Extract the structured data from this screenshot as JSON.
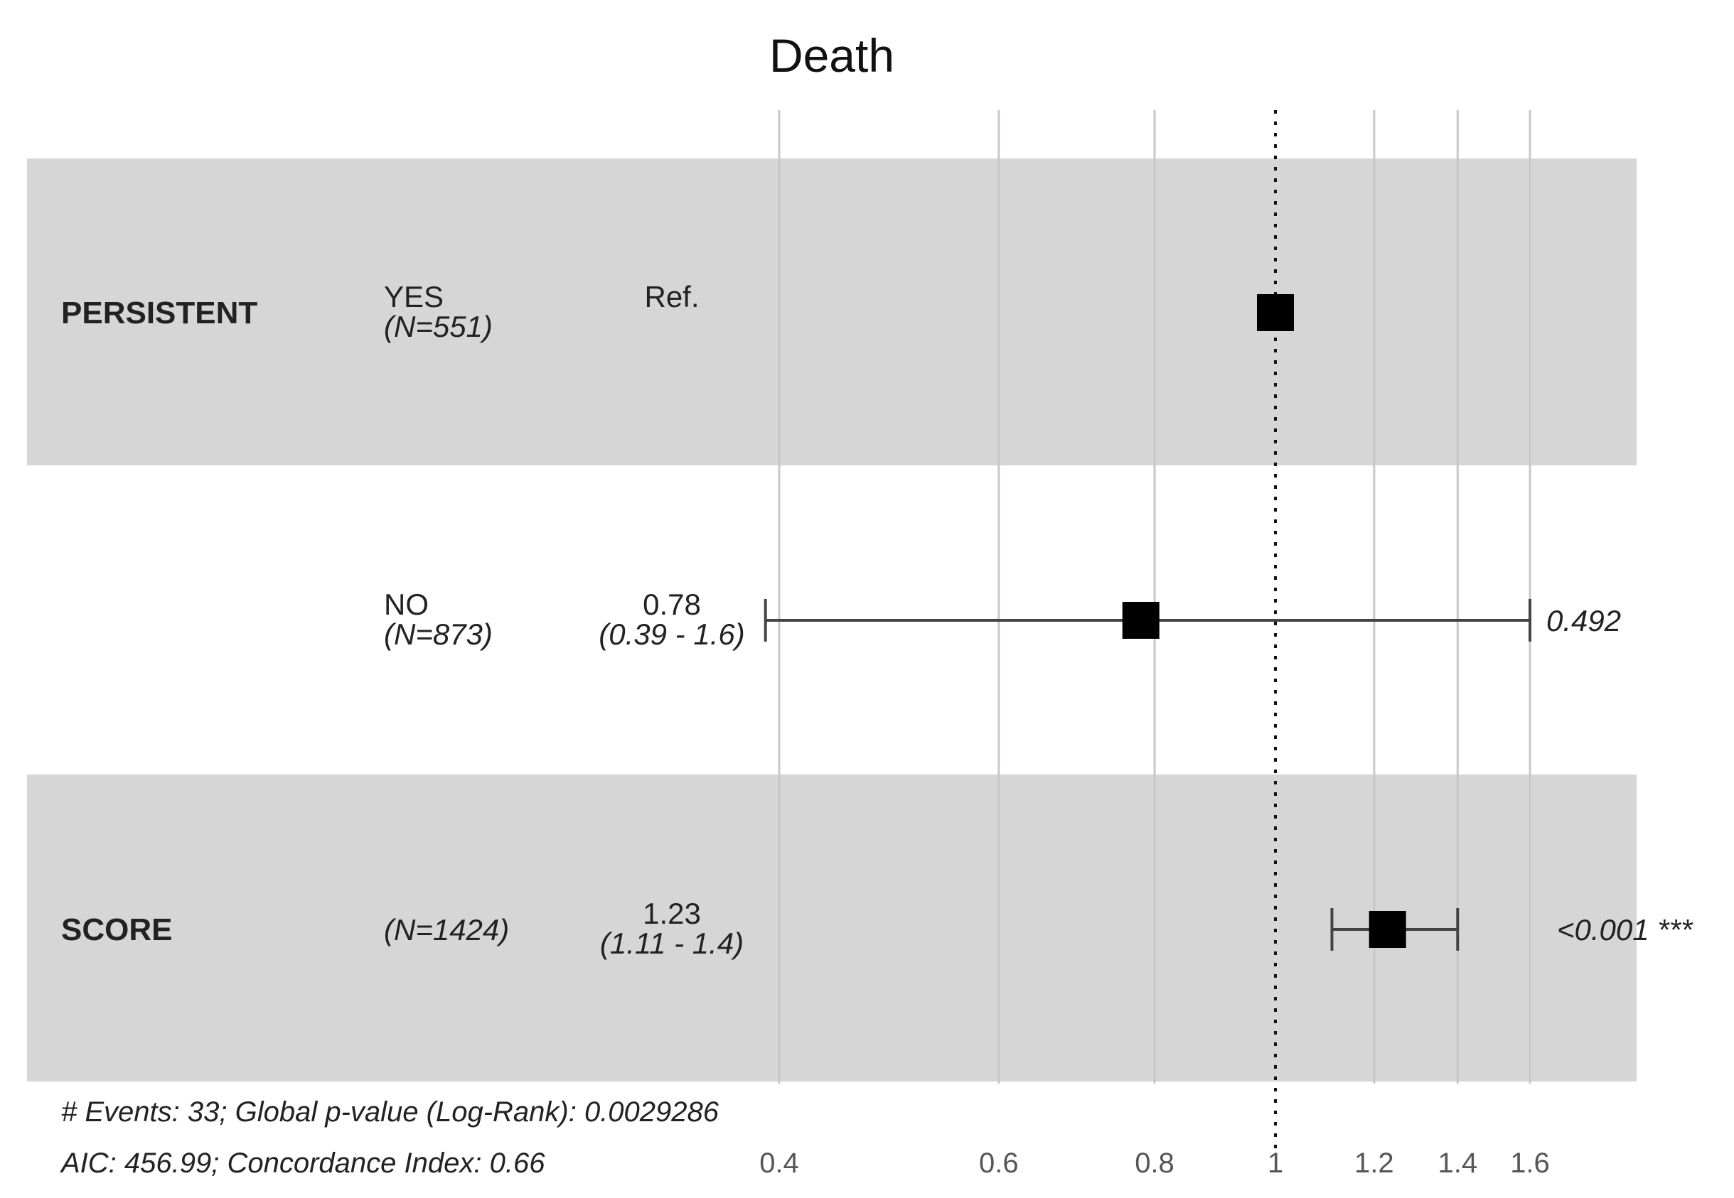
{
  "chart_data": {
    "type": "forest",
    "title": "Death",
    "x_scale": "log",
    "xlim": [
      0.38,
      1.8
    ],
    "ticks": [
      0.4,
      0.6,
      0.8,
      1,
      1.2,
      1.4,
      1.6
    ],
    "tick_labels": [
      "0.4",
      "0.6",
      "0.8",
      "1",
      "1.2",
      "1.4",
      "1.6"
    ],
    "reference_line": 1,
    "rows": [
      {
        "variable": "PERSISTENT",
        "level": "YES",
        "n": "(N=551)",
        "hr_label": "Ref.",
        "ci_label": "",
        "p_label": "",
        "estimate": 1,
        "ci_low": null,
        "ci_high": null,
        "shaded": true
      },
      {
        "variable": "",
        "level": "NO",
        "n": "(N=873)",
        "hr_label": "0.78",
        "ci_label": "(0.39 - 1.6)",
        "p_label": "0.492",
        "estimate": 0.78,
        "ci_low": 0.39,
        "ci_high": 1.6,
        "shaded": false
      },
      {
        "variable": "SCORE",
        "level": "",
        "n": "(N=1424)",
        "hr_label": "1.23",
        "ci_label": "(1.11 - 1.4)",
        "p_label": "<0.001 ***",
        "estimate": 1.23,
        "ci_low": 1.11,
        "ci_high": 1.4,
        "shaded": true
      }
    ],
    "footnotes": [
      "# Events: 33; Global p-value (Log-Rank): 0.0029286",
      "AIC: 456.99; Concordance Index: 0.66"
    ]
  }
}
